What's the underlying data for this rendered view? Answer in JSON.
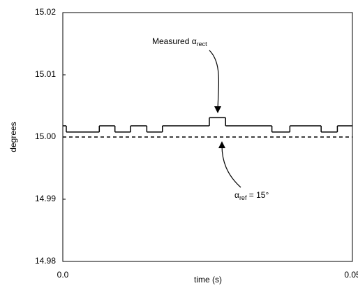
{
  "chart_data": {
    "type": "step",
    "xlabel": "time (s)",
    "ylabel": "degrees",
    "xlim": [
      0,
      0.05
    ],
    "xticks": [
      {
        "value": 0,
        "label": "0.0"
      },
      0.05
    ],
    "ylim": [
      14.98,
      15.02
    ],
    "yticks": [
      15.02,
      15.01,
      {
        "value": 15,
        "label": "15.00"
      },
      14.99,
      14.98
    ],
    "grid": false,
    "series": [
      {
        "name": "Measured α",
        "name_sub": "rect",
        "color": "#000",
        "dash": false,
        "step": "post",
        "x": [
          0,
          0.0006,
          0.0063,
          0.009,
          0.0117,
          0.0145,
          0.0172,
          0.0253,
          0.0281,
          0.0361,
          0.0392,
          0.0446,
          0.0474
        ],
        "values": [
          15.0018,
          15.0008,
          15.0018,
          15.0008,
          15.0018,
          15.0008,
          15.0018,
          15.0031,
          15.0018,
          15.0008,
          15.0018,
          15.0008,
          15.0018
        ]
      },
      {
        "name": "α",
        "name_sub": "ref",
        "name_suffix": " = 15°",
        "color": "#000",
        "dash": true,
        "step": "post",
        "x": [
          0
        ],
        "values": [
          15
        ]
      }
    ]
  }
}
